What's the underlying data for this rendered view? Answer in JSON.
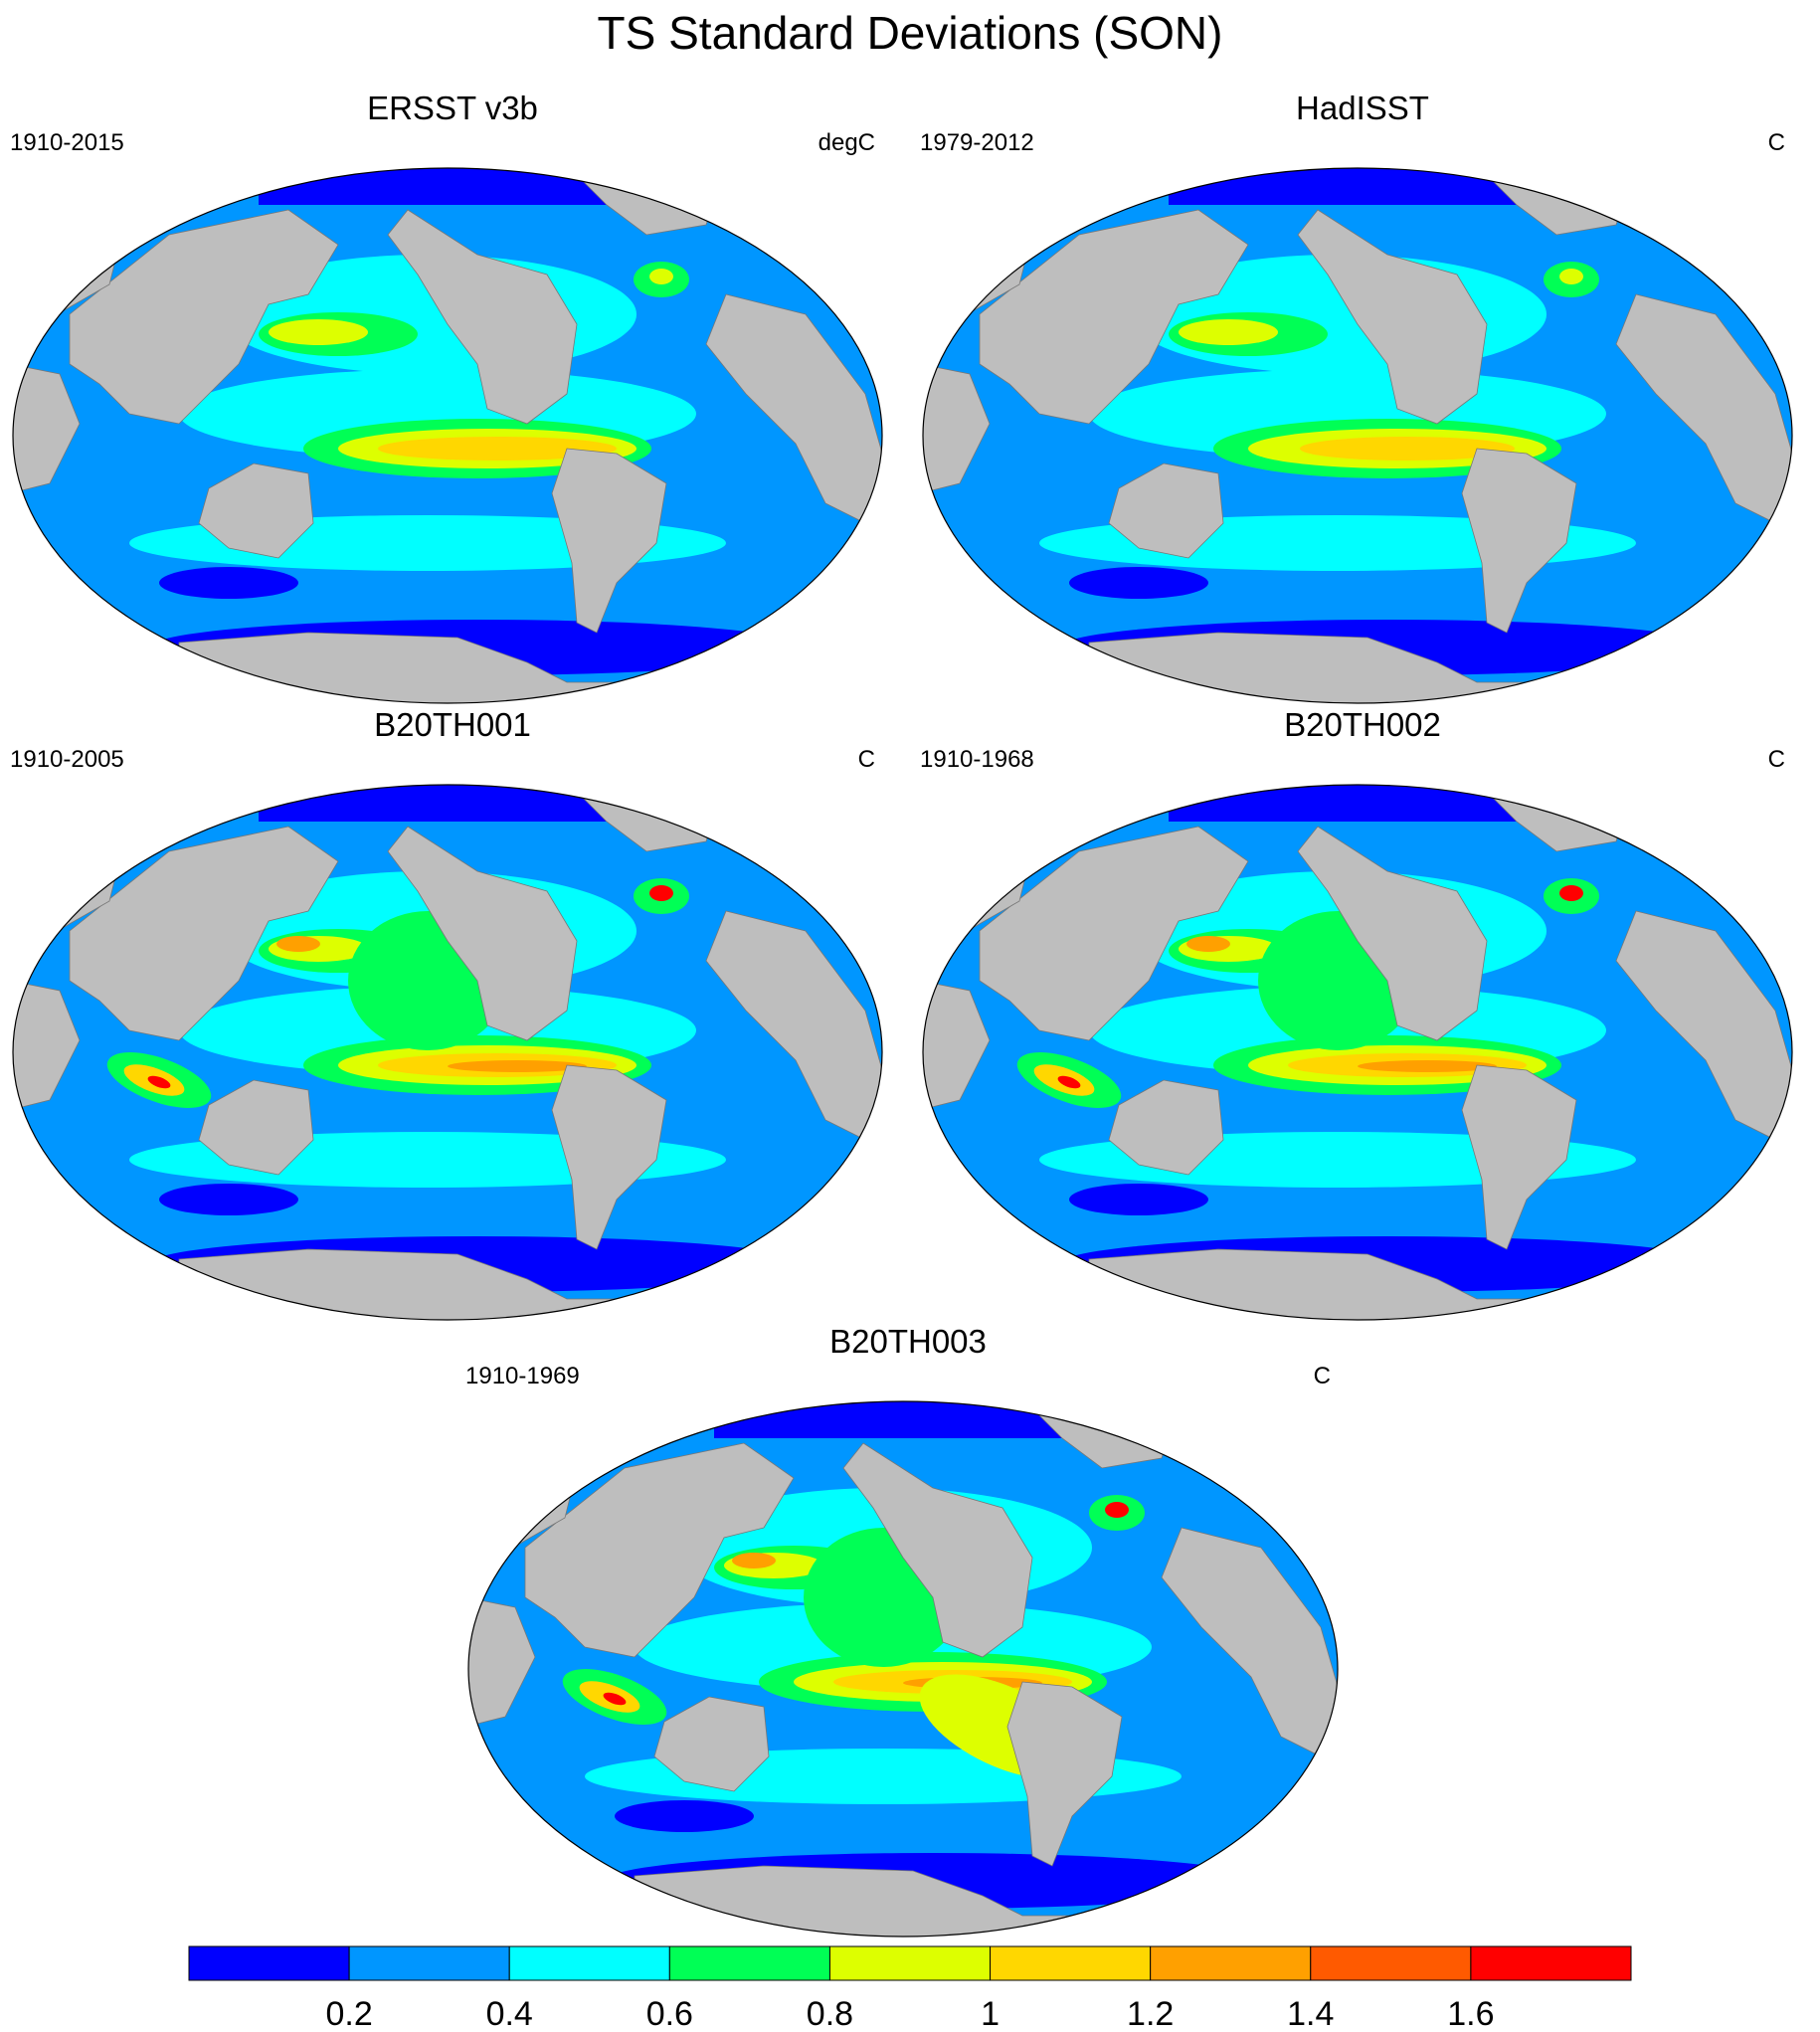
{
  "figure": {
    "title": "TS Standard Deviations (SON)"
  },
  "panels": [
    {
      "id": "p1",
      "title": "ERSST v3b",
      "period": "1910-2015",
      "units": "degC"
    },
    {
      "id": "p2",
      "title": "HadISST",
      "period": "1979-2012",
      "units": "C"
    },
    {
      "id": "p3",
      "title": "B20TH001",
      "period": "1910-2005",
      "units": "C"
    },
    {
      "id": "p4",
      "title": "B20TH002",
      "period": "1910-1968",
      "units": "C"
    },
    {
      "id": "p5",
      "title": "B20TH003",
      "period": "1910-1969",
      "units": "C"
    }
  ],
  "colorbar": {
    "colors": [
      "#0000ff",
      "#0096ff",
      "#00ffff",
      "#00ff55",
      "#ddff00",
      "#ffd700",
      "#ffa000",
      "#ff5a00",
      "#ff0000"
    ],
    "tick_labels": [
      "0.2",
      "0.4",
      "0.6",
      "0.8",
      "1",
      "1.2",
      "1.4",
      "1.6"
    ]
  },
  "colors": {
    "land": "#bebebe",
    "missing": "#ffffff",
    "outline": "#000000"
  }
}
